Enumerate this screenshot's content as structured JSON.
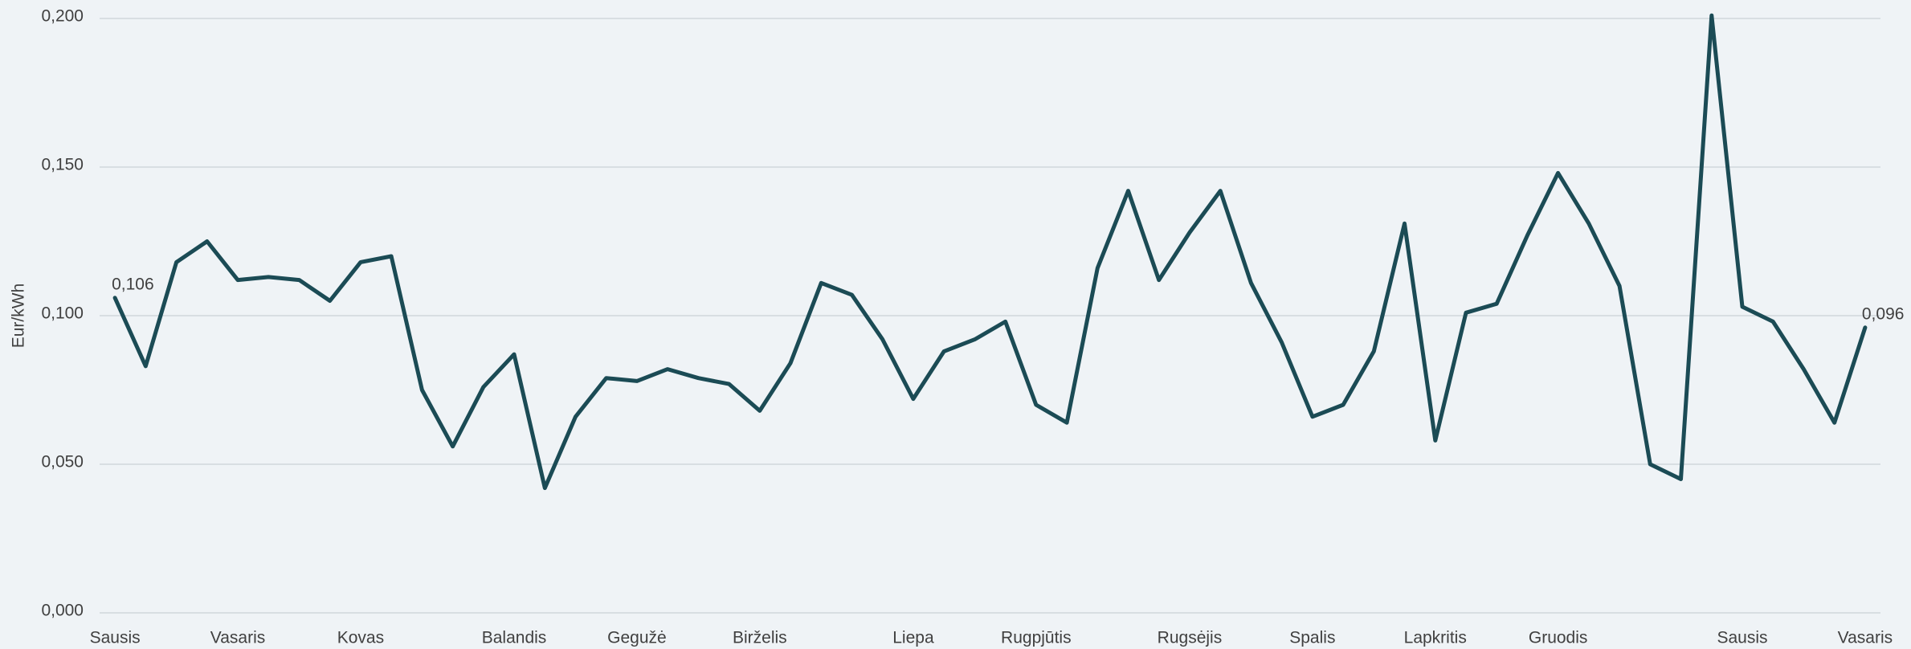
{
  "chart_data": {
    "type": "line",
    "y_label": "Eur/kWh",
    "categories": [
      "Sausis",
      null,
      null,
      null,
      "Vasaris",
      null,
      null,
      null,
      "Kovas",
      null,
      null,
      null,
      null,
      "Balandis",
      null,
      null,
      null,
      "Gegužė",
      null,
      null,
      null,
      "Birželis",
      null,
      null,
      null,
      null,
      "Liepa",
      null,
      null,
      null,
      "Rugpjūtis",
      null,
      null,
      null,
      null,
      "Rugsėjis",
      null,
      null,
      null,
      "Spalis",
      null,
      null,
      null,
      "Lapkritis",
      null,
      null,
      null,
      "Gruodis",
      null,
      null,
      null,
      null,
      null,
      "Sausis",
      null,
      null,
      null,
      "Vasaris"
    ],
    "series": [
      {
        "name": "Eur/kWh",
        "color": "#1b4b55",
        "values": [
          0.106,
          0.083,
          0.118,
          0.125,
          0.112,
          0.113,
          0.112,
          0.105,
          0.118,
          0.12,
          0.075,
          0.056,
          0.076,
          0.087,
          0.042,
          0.066,
          0.079,
          0.078,
          0.082,
          0.079,
          0.077,
          0.068,
          0.084,
          0.111,
          0.107,
          0.092,
          0.072,
          0.088,
          0.092,
          0.098,
          0.07,
          0.064,
          0.116,
          0.142,
          0.112,
          0.128,
          0.142,
          0.111,
          0.091,
          0.066,
          0.07,
          0.088,
          0.131,
          0.058,
          0.101,
          0.104,
          0.127,
          0.148,
          0.131,
          0.11,
          0.05,
          0.045,
          0.201,
          0.103,
          0.098,
          0.082,
          0.064,
          0.096
        ],
        "value_labels": [
          "0,106",
          null,
          null,
          null,
          null,
          null,
          null,
          null,
          null,
          null,
          null,
          null,
          null,
          null,
          null,
          null,
          null,
          null,
          null,
          null,
          null,
          null,
          null,
          null,
          null,
          null,
          null,
          null,
          null,
          null,
          null,
          null,
          null,
          null,
          null,
          null,
          null,
          null,
          null,
          null,
          null,
          null,
          null,
          null,
          null,
          null,
          null,
          null,
          null,
          null,
          null,
          null,
          null,
          null,
          null,
          null,
          null,
          "0,096"
        ]
      }
    ],
    "ylim": [
      0,
      0.2
    ],
    "yticks": [
      {
        "value": 0,
        "label": "0,000"
      },
      {
        "value": 0.05,
        "label": "0,050"
      },
      {
        "value": 0.1,
        "label": "0,100"
      },
      {
        "value": 0.15,
        "label": "0,150"
      },
      {
        "value": 0.2,
        "label": "0,200"
      }
    ],
    "grid": true
  }
}
